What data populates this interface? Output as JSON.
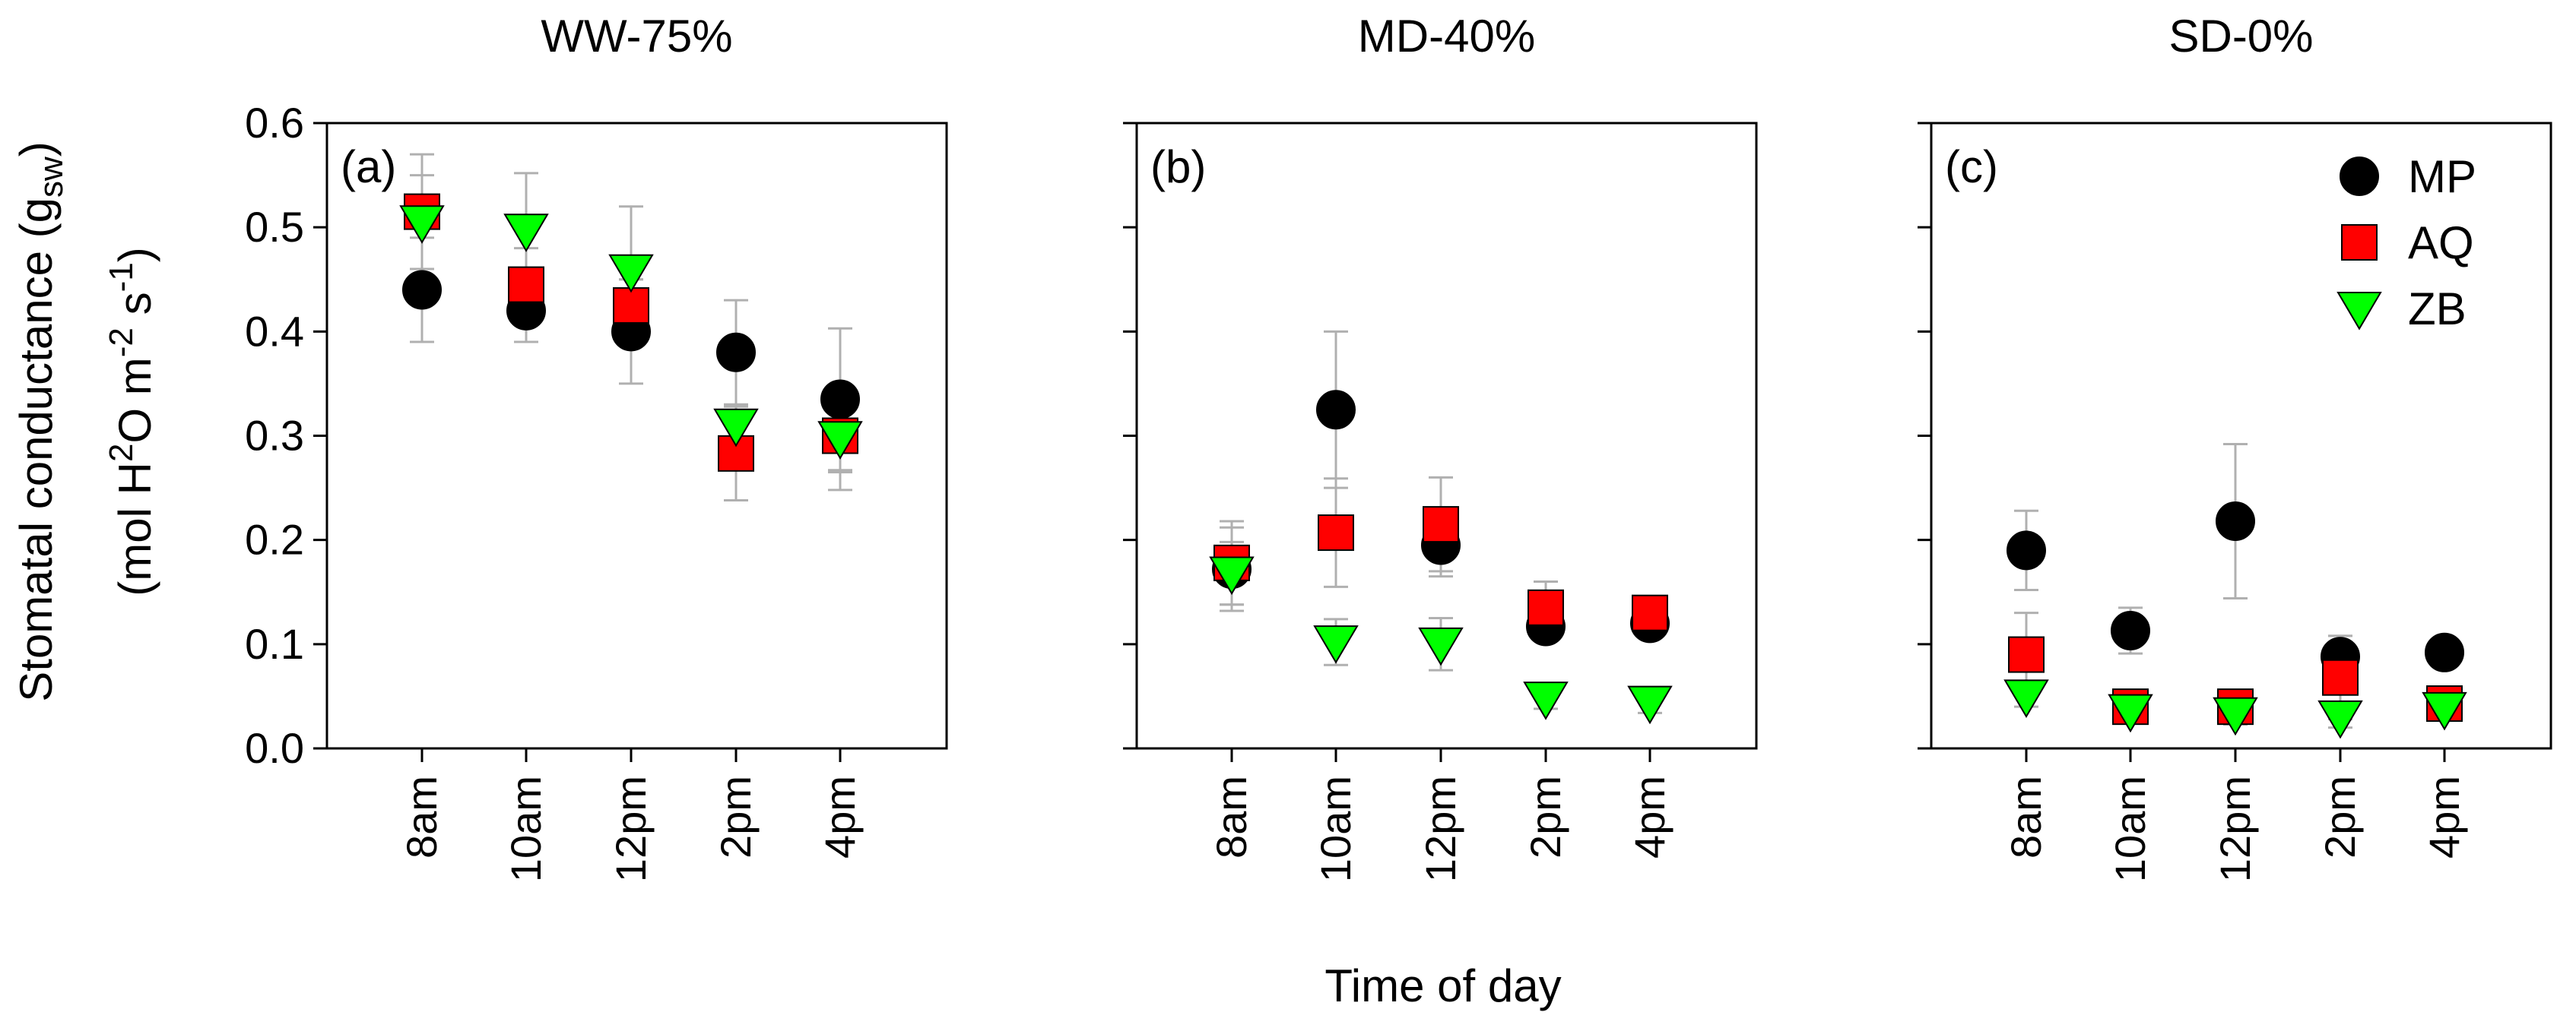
{
  "figure": {
    "ylabel_main": "Stomatal conductance (g",
    "ylabel_sub": "sw",
    "ylabel_close": ")",
    "ylabel_units": "(mol H",
    "ylabel_units_sup1": "2",
    "ylabel_units_mid": "O m",
    "ylabel_units_sup2": "-2",
    "ylabel_units_mid2": " s",
    "ylabel_units_sup3": "-1",
    "ylabel_units_close": ")",
    "xlabel": "Time of day"
  },
  "legend": {
    "position": "top-right of panel (c)",
    "entries": [
      {
        "name": "MP",
        "marker": "circle",
        "color": "#000000"
      },
      {
        "name": "AQ",
        "marker": "square",
        "color": "#ff0000"
      },
      {
        "name": "ZB",
        "marker": "triangle-down",
        "color": "#00ff00"
      }
    ]
  },
  "chart_data": [
    {
      "type": "scatter",
      "title": "WW-75%",
      "tag": "(a)",
      "categories": [
        "8am",
        "10am",
        "12pm",
        "2pm",
        "4pm"
      ],
      "ylim": [
        0.0,
        0.6
      ],
      "yticks": [
        "0.0",
        "0.1",
        "0.2",
        "0.3",
        "0.4",
        "0.5",
        "0.6"
      ],
      "series": [
        {
          "name": "MP",
          "values": [
            0.44,
            0.42,
            0.4,
            0.38,
            0.335
          ],
          "errors": [
            0.05,
            0.03,
            0.05,
            0.05,
            0.068
          ]
        },
        {
          "name": "AQ",
          "values": [
            0.515,
            0.445,
            0.425,
            0.283,
            0.3
          ],
          "errors": [
            0.055,
            0.035,
            0.025,
            0.045,
            0.035
          ]
        },
        {
          "name": "ZB",
          "values": [
            0.505,
            0.497,
            0.458,
            0.31,
            0.298
          ],
          "errors": [
            0.045,
            0.055,
            0.062,
            0.02,
            0.05
          ]
        }
      ]
    },
    {
      "type": "scatter",
      "title": "MD-40%",
      "tag": "(b)",
      "categories": [
        "8am",
        "10am",
        "12pm",
        "2pm",
        "4pm"
      ],
      "ylim": [
        0.0,
        0.6
      ],
      "yticks": [],
      "series": [
        {
          "name": "MP",
          "values": [
            0.172,
            0.325,
            0.195,
            0.117,
            0.12
          ],
          "errors": [
            0.04,
            0.075,
            0.03,
            0.012,
            0.01
          ]
        },
        {
          "name": "AQ",
          "values": [
            0.178,
            0.207,
            0.215,
            0.135,
            0.13
          ],
          "errors": [
            0.04,
            0.052,
            0.045,
            0.025,
            0.01
          ]
        },
        {
          "name": "ZB",
          "values": [
            0.168,
            0.102,
            0.1,
            0.048,
            0.044
          ],
          "errors": [
            0.03,
            0.022,
            0.025,
            0.01,
            0.01
          ]
        }
      ]
    },
    {
      "type": "scatter",
      "title": "SD-0%",
      "tag": "(c)",
      "categories": [
        "8am",
        "10am",
        "12pm",
        "2pm",
        "4pm"
      ],
      "ylim": [
        0.0,
        0.6
      ],
      "yticks": [],
      "series": [
        {
          "name": "MP",
          "values": [
            0.19,
            0.113,
            0.218,
            0.088,
            0.092
          ],
          "errors": [
            0.038,
            0.022,
            0.074,
            0.02,
            0.01
          ]
        },
        {
          "name": "AQ",
          "values": [
            0.09,
            0.04,
            0.04,
            0.068,
            0.043
          ],
          "errors": [
            0.04,
            0.01,
            0.01,
            0.04,
            0.01
          ]
        },
        {
          "name": "ZB",
          "values": [
            0.05,
            0.036,
            0.033,
            0.03,
            0.038
          ],
          "errors": [
            0.01,
            0.01,
            0.01,
            0.01,
            0.01
          ]
        }
      ]
    }
  ]
}
